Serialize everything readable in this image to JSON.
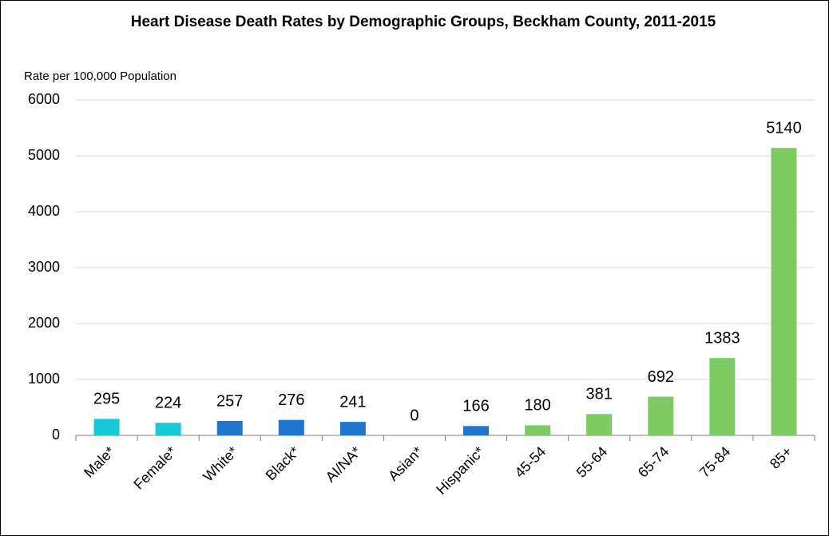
{
  "chart_data": {
    "type": "bar",
    "title": "Heart Disease Death Rates by Demographic Groups, Beckham County, 2011-2015",
    "y_label": "Rate per 100,000 Population",
    "categories": [
      "Male*",
      "Female*",
      "White*",
      "Black*",
      "AI/NA*",
      "Asian*",
      "Hispanic*",
      "45-54",
      "55-64",
      "65-74",
      "75-84",
      "85+"
    ],
    "values": [
      295,
      224,
      257,
      276,
      241,
      0,
      166,
      180,
      381,
      692,
      1383,
      5140
    ],
    "colors": [
      "#17c9d6",
      "#17c9d6",
      "#1f74cc",
      "#1f74cc",
      "#1f74cc",
      "#1f74cc",
      "#1f74cc",
      "#7dcb62",
      "#7dcb62",
      "#7dcb62",
      "#7dcb62",
      "#7dcb62"
    ],
    "ylim": [
      0,
      6000
    ],
    "yticks": [
      0,
      1000,
      2000,
      3000,
      4000,
      5000,
      6000
    ],
    "grid": true
  }
}
